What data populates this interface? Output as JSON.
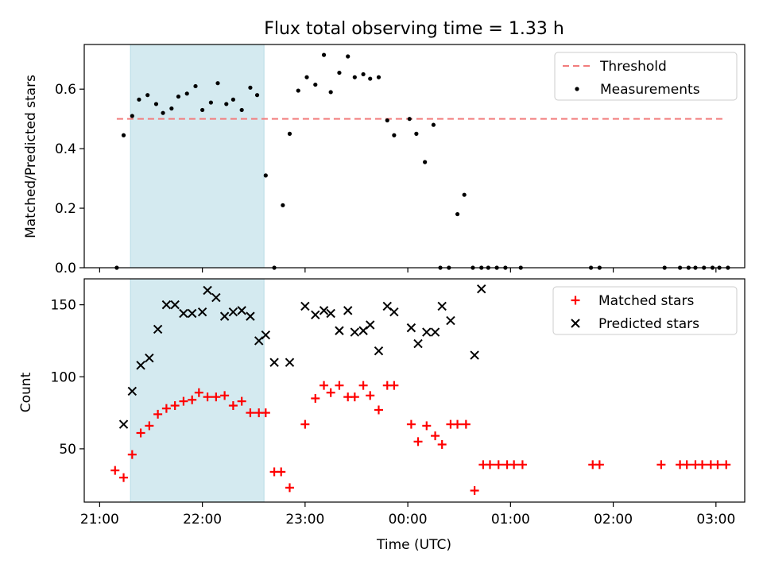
{
  "figure": {
    "title": "Flux total observing time = 1.33 h"
  },
  "chart_data": [
    {
      "type": "scatter",
      "ylabel": "Matched/Predicted stars",
      "xlim_hours": [
        20.85,
        27.28
      ],
      "ylim": [
        0,
        0.75
      ],
      "yticks": [
        0.0,
        0.2,
        0.4,
        0.6
      ],
      "ytick_labels": [
        "0.0",
        "0.2",
        "0.4",
        "0.6"
      ],
      "grid": false,
      "legend_position": "upper right",
      "highlight_band": {
        "x_start": "21:18",
        "x_end": "22:36",
        "color": "#d4eaf0"
      },
      "threshold": {
        "name": "Threshold",
        "y": 0.5,
        "x_start": "21:10",
        "x_end": "27:06",
        "color": "#f27c7c"
      },
      "series": [
        {
          "name": "Measurements",
          "color": "#000000",
          "x": [
            "21:10",
            "21:14",
            "21:19",
            "21:23",
            "21:28",
            "21:33",
            "21:37",
            "21:42",
            "21:46",
            "21:51",
            "21:56",
            "22:00",
            "22:05",
            "22:09",
            "22:14",
            "22:18",
            "22:23",
            "22:28",
            "22:32",
            "22:37",
            "22:42",
            "22:47",
            "22:51",
            "22:56",
            "23:01",
            "23:06",
            "23:11",
            "23:15",
            "23:20",
            "23:25",
            "23:29",
            "23:34",
            "23:38",
            "23:43",
            "23:48",
            "23:52",
            "00:01",
            "00:05",
            "00:10",
            "00:15",
            "00:19",
            "00:24",
            "00:29",
            "00:33",
            "00:38",
            "00:43",
            "00:47",
            "00:52",
            "00:57",
            "01:06",
            "01:47",
            "01:52",
            "02:30",
            "02:39",
            "02:44",
            "02:48",
            "02:53",
            "02:58",
            "03:02",
            "03:07"
          ],
          "y": [
            0.0,
            0.445,
            0.51,
            0.565,
            0.58,
            0.55,
            0.52,
            0.535,
            0.575,
            0.585,
            0.61,
            0.53,
            0.555,
            0.62,
            0.55,
            0.565,
            0.53,
            0.605,
            0.58,
            0.31,
            0.0,
            0.21,
            0.45,
            0.595,
            0.64,
            0.615,
            0.715,
            0.59,
            0.655,
            0.71,
            0.64,
            0.65,
            0.635,
            0.64,
            0.495,
            0.445,
            0.5,
            0.45,
            0.355,
            0.48,
            0.0,
            0.0,
            0.18,
            0.245,
            0.0,
            0.0,
            0.0,
            0.0,
            0.0,
            0.0,
            0.0,
            0.0,
            0.0,
            0.0,
            0.0,
            0.0,
            0.0,
            0.0,
            0.0,
            0.0
          ]
        }
      ],
      "legend": [
        "Threshold",
        "Measurements"
      ]
    },
    {
      "type": "scatter",
      "xlabel": "Time (UTC)",
      "ylabel": "Count",
      "xlim_hours": [
        20.85,
        27.28
      ],
      "ylim": [
        13,
        168
      ],
      "yticks": [
        50,
        100,
        150
      ],
      "ytick_labels": [
        "50",
        "100",
        "150"
      ],
      "xticks": [
        "21:00",
        "22:00",
        "23:00",
        "00:00",
        "01:00",
        "02:00",
        "03:00"
      ],
      "grid": false,
      "legend_position": "upper right",
      "highlight_band": {
        "x_start": "21:18",
        "x_end": "22:36",
        "color": "#d4eaf0"
      },
      "series": [
        {
          "name": "Matched stars",
          "marker": "plus",
          "color": "#ff0000",
          "x": [
            "21:09",
            "21:14",
            "21:19",
            "21:24",
            "21:29",
            "21:34",
            "21:39",
            "21:44",
            "21:49",
            "21:54",
            "21:58",
            "22:03",
            "22:08",
            "22:13",
            "22:18",
            "22:23",
            "22:28",
            "22:33",
            "22:37",
            "22:42",
            "22:46",
            "22:51",
            "23:00",
            "23:06",
            "23:11",
            "23:15",
            "23:20",
            "23:25",
            "23:29",
            "23:34",
            "23:38",
            "23:43",
            "23:48",
            "23:52",
            "00:02",
            "00:06",
            "00:11",
            "00:16",
            "00:20",
            "00:25",
            "00:29",
            "00:34",
            "00:39",
            "00:44",
            "00:48",
            "00:53",
            "00:58",
            "01:02",
            "01:07",
            "01:48",
            "01:52",
            "02:28",
            "02:39",
            "02:43",
            "02:48",
            "02:52",
            "02:57",
            "03:01",
            "03:06"
          ],
          "y": [
            35,
            30,
            46,
            61,
            66,
            74,
            78,
            80,
            83,
            84,
            89,
            86,
            86,
            87,
            80,
            83,
            75,
            75,
            75,
            34,
            34,
            23,
            67,
            85,
            94,
            89,
            94,
            86,
            86,
            94,
            87,
            77,
            94,
            94,
            67,
            55,
            66,
            59,
            53,
            67,
            67,
            67,
            21,
            39,
            39,
            39,
            39,
            39,
            39,
            39,
            39,
            39,
            39,
            39,
            39,
            39,
            39,
            39,
            39
          ]
        },
        {
          "name": "Predicted stars",
          "marker": "x",
          "color": "#000000",
          "x": [
            "21:14",
            "21:19",
            "21:24",
            "21:29",
            "21:34",
            "21:39",
            "21:44",
            "21:49",
            "21:54",
            "22:00",
            "22:03",
            "22:08",
            "22:13",
            "22:18",
            "22:23",
            "22:28",
            "22:33",
            "22:37",
            "22:42",
            "22:51",
            "23:00",
            "23:06",
            "23:11",
            "23:15",
            "23:20",
            "23:25",
            "23:29",
            "23:34",
            "23:38",
            "23:43",
            "23:48",
            "23:52",
            "00:02",
            "00:06",
            "00:11",
            "00:16",
            "00:20",
            "00:25",
            "00:39",
            "00:43"
          ],
          "y": [
            67,
            90,
            108,
            113,
            133,
            150,
            150,
            144,
            144,
            145,
            160,
            155,
            142,
            145,
            146,
            142,
            125,
            129,
            110,
            110,
            149,
            143,
            146,
            144,
            132,
            146,
            131,
            132,
            136,
            118,
            149,
            145,
            134,
            123,
            131,
            131,
            149,
            139,
            115,
            161
          ]
        }
      ],
      "legend": [
        "Matched stars",
        "Predicted stars"
      ]
    }
  ]
}
